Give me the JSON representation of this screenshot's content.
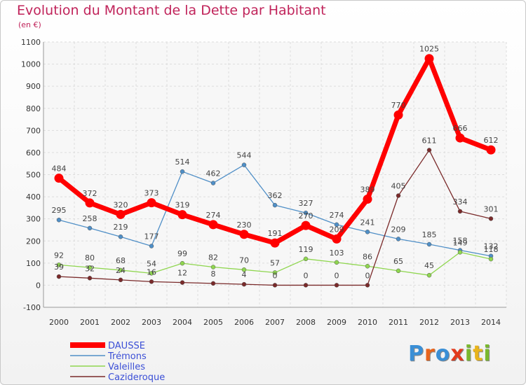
{
  "title": "Evolution du Montant de la Dette par Habitant",
  "subtitle": "(en €)",
  "logo": {
    "letters": [
      "P",
      "r",
      "o",
      "x",
      "i",
      "t",
      "i"
    ],
    "colors": [
      "#3a8fd6",
      "#e8641c",
      "#3a8fd6",
      "#e23a1c",
      "#7ab82e",
      "#e8b41c",
      "#7ab82e"
    ]
  },
  "chart_data": {
    "type": "line",
    "x": [
      "2000",
      "2001",
      "2002",
      "2003",
      "2004",
      "2005",
      "2006",
      "2007",
      "2008",
      "2009",
      "2010",
      "2011",
      "2012",
      "2013",
      "2014"
    ],
    "ylim": [
      -100,
      1100
    ],
    "yticks": [
      "-100",
      "0",
      "100",
      "200",
      "300",
      "400",
      "500",
      "600",
      "700",
      "800",
      "900",
      "1000",
      "1100"
    ],
    "grid": true,
    "legend_position": "bottom-left",
    "series": [
      {
        "name": "DAUSSE",
        "color": "#ff0000",
        "values": [
          484,
          372,
          320,
          373,
          319,
          274,
          230,
          191,
          270,
          209,
          389,
          770,
          1025,
          666,
          612
        ],
        "labels": [
          "484",
          "372",
          "320",
          "373",
          "319",
          "274",
          "230",
          "191",
          "270",
          "209",
          "389",
          "770",
          "1025",
          "666",
          "612"
        ]
      },
      {
        "name": "Trémons",
        "color": "#4f8fc7",
        "values": [
          295,
          258,
          219,
          177,
          514,
          462,
          544,
          362,
          327,
          274,
          241,
          209,
          185,
          158,
          132
        ],
        "labels": [
          "295",
          "258",
          "219",
          "177",
          "514",
          "462",
          "544",
          "362",
          "327",
          "274",
          "241",
          "209",
          "185",
          "158",
          "132"
        ]
      },
      {
        "name": "Valeilles",
        "color": "#8fd64f",
        "values": [
          92,
          80,
          68,
          54,
          99,
          82,
          70,
          57,
          119,
          103,
          86,
          65,
          45,
          149,
          118
        ],
        "labels": [
          "92",
          "80",
          "68",
          "54",
          "99",
          "82",
          "70",
          "57",
          "119",
          "103",
          "86",
          "65",
          "45",
          "149",
          "118"
        ]
      },
      {
        "name": "Cazideroque",
        "color": "#7a2a2a",
        "values": [
          39,
          32,
          24,
          16,
          12,
          8,
          4,
          0,
          0,
          0,
          0,
          405,
          611,
          334,
          301
        ],
        "labels": [
          "39",
          "32",
          "24",
          "16",
          "12",
          "8",
          "4",
          "0",
          "0",
          "0",
          "0",
          "405",
          "611",
          "334",
          "301"
        ]
      }
    ]
  }
}
